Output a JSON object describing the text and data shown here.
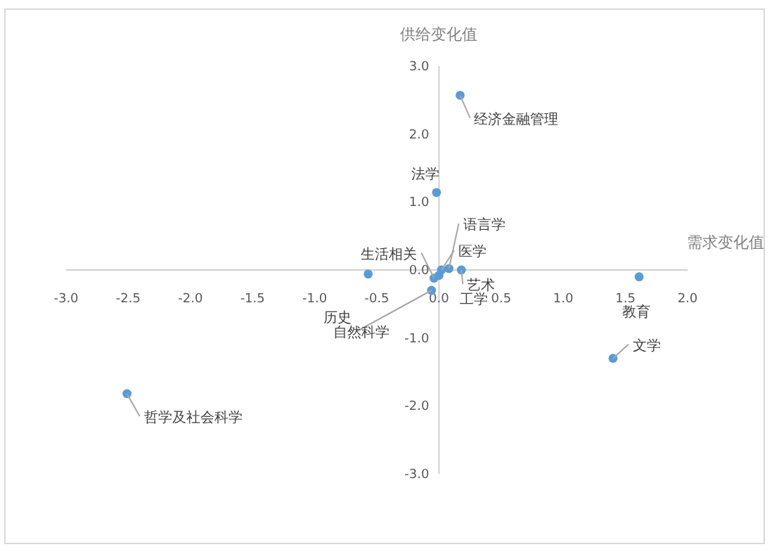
{
  "chart_data": {
    "type": "scatter",
    "xlabel": "需求变化值",
    "ylabel": "供给变化值",
    "x": [
      0.17,
      -0.02,
      -0.57,
      -2.51,
      1.4,
      1.61,
      0.08,
      0.02,
      0.18,
      0.0,
      -0.04,
      -0.06
    ],
    "series": [
      {
        "color": "#5b9bd5",
        "values": [
          2.57,
          1.14,
          -0.06,
          -1.82,
          -1.3,
          -0.1,
          0.02,
          0.0,
          0.0,
          -0.08,
          -0.12,
          -0.3
        ]
      }
    ],
    "annotations": [
      {
        "text": "经济金融管理",
        "x": 0.17,
        "y": 2.57
      },
      {
        "text": "法学",
        "x": -0.02,
        "y": 1.14
      },
      {
        "text": "历史",
        "x": -0.57,
        "y": -0.06
      },
      {
        "text": "哲学及社会科学",
        "x": -2.51,
        "y": -1.82
      },
      {
        "text": "文学",
        "x": 1.4,
        "y": -1.3
      },
      {
        "text": "教育",
        "x": 1.61,
        "y": -0.1
      },
      {
        "text": "语言学",
        "x": 0.08,
        "y": 0.02
      },
      {
        "text": "医学",
        "x": 0.02,
        "y": 0.0
      },
      {
        "text": "艺术",
        "x": 0.18,
        "y": 0.0
      },
      {
        "text": "工学",
        "x": 0.0,
        "y": -0.08
      },
      {
        "text": "生活相关",
        "x": -0.04,
        "y": -0.12
      },
      {
        "text": "自然科学",
        "x": -0.06,
        "y": -0.3
      }
    ],
    "xlim": [
      -3.0,
      2.0
    ],
    "xticks": [
      {
        "value": -3,
        "label": "-3.0"
      },
      {
        "value": -2.5,
        "label": "-2.5"
      },
      {
        "value": -2,
        "label": "-2.0"
      },
      {
        "value": -1.5,
        "label": "-1.5"
      },
      {
        "value": -1,
        "label": "-1.0"
      },
      {
        "value": -0.5,
        "label": "-0.5"
      },
      {
        "value": 0,
        "label": "0.0"
      },
      {
        "value": 0.5,
        "label": "0.5"
      },
      {
        "value": 1,
        "label": "1.0"
      },
      {
        "value": 1.5,
        "label": "1.5"
      },
      {
        "value": 2,
        "label": "2.0"
      }
    ],
    "ylim": [
      -3.0,
      3.0
    ],
    "yticks": [
      {
        "value": -3,
        "label": "-3.0"
      },
      {
        "value": -2,
        "label": "-2.0"
      },
      {
        "value": -1,
        "label": "-1.0"
      },
      {
        "value": 0,
        "label": "0.0"
      },
      {
        "value": 1,
        "label": "1.0"
      },
      {
        "value": 2,
        "label": "2.0"
      },
      {
        "value": 3,
        "label": "3.0"
      }
    ],
    "grid": false,
    "marker": "circle"
  }
}
